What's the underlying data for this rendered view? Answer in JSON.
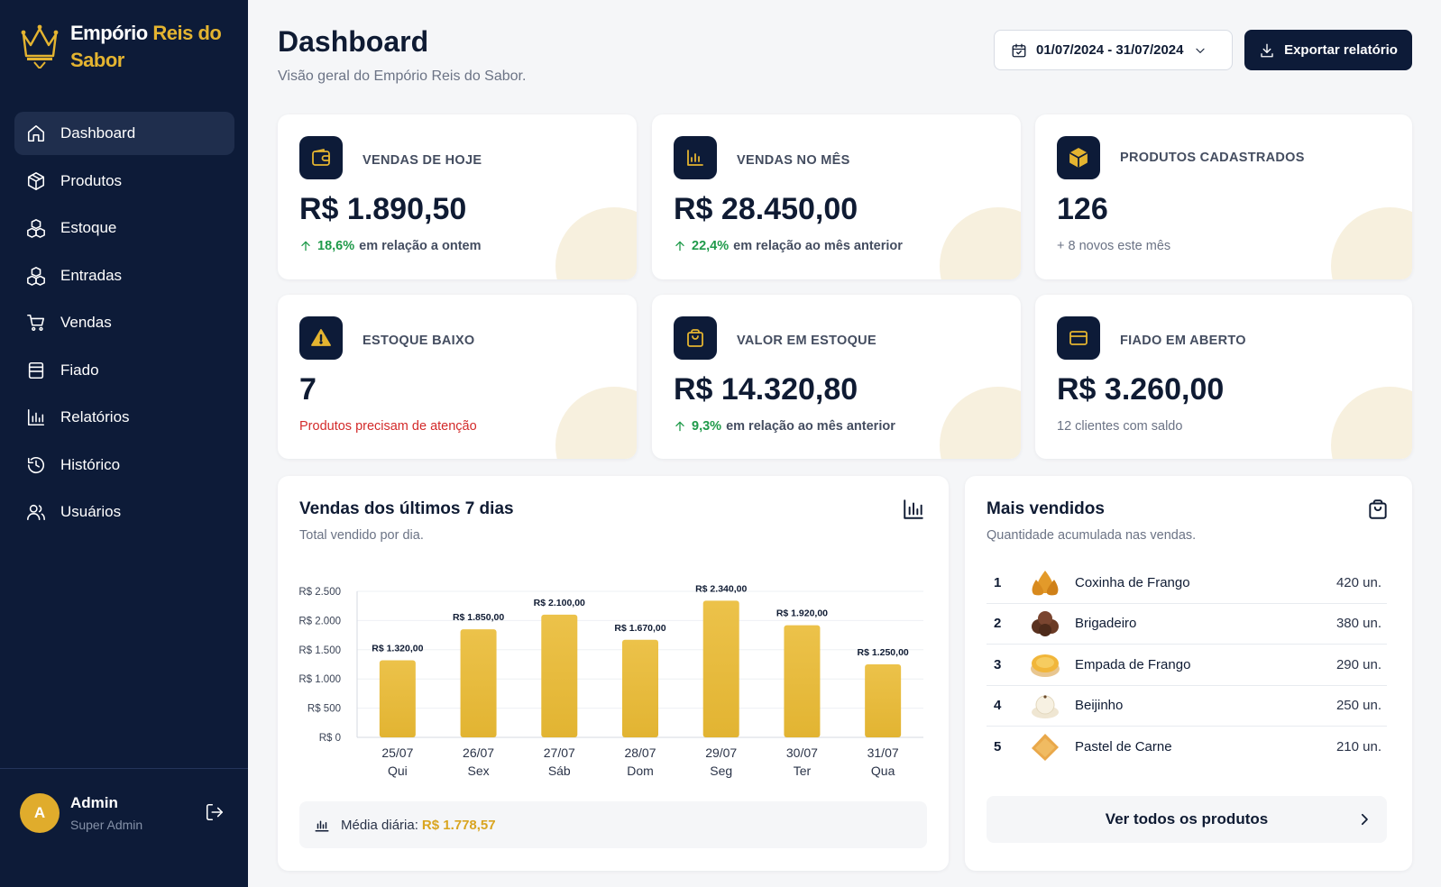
{
  "brand": {
    "name_part1": "Empório",
    "name_part2": "Reis do",
    "name_part3": "Sabor"
  },
  "nav": {
    "items": [
      {
        "label": "Dashboard",
        "icon": "home-icon",
        "active": true
      },
      {
        "label": "Produtos",
        "icon": "box-icon"
      },
      {
        "label": "Estoque",
        "icon": "boxes-icon"
      },
      {
        "label": "Entradas",
        "icon": "boxes-icon"
      },
      {
        "label": "Vendas",
        "icon": "cart-icon"
      },
      {
        "label": "Fiado",
        "icon": "ledger-icon"
      },
      {
        "label": "Relatórios",
        "icon": "bar-chart-icon"
      },
      {
        "label": "Histórico",
        "icon": "history-icon"
      },
      {
        "label": "Usuários",
        "icon": "users-icon"
      }
    ]
  },
  "user": {
    "initial": "A",
    "name": "Admin",
    "role": "Super Admin"
  },
  "header": {
    "title": "Dashboard",
    "subtitle": "Visão geral do Empório Reis do Sabor.",
    "date_range": "01/07/2024 - 31/07/2024",
    "export_label": "Exportar relatório"
  },
  "stats": [
    {
      "label": "VENDAS DE HOJE",
      "value": "R$ 1.890,50",
      "change": "18,6%",
      "note": "em relação a ontem",
      "icon": "wallet-icon"
    },
    {
      "label": "VENDAS NO MÊS",
      "value": "R$ 28.450,00",
      "change": "22,4%",
      "note": "em relação ao mês anterior",
      "icon": "chart-icon"
    },
    {
      "label": "PRODUTOS CADASTRADOS",
      "value": "126",
      "note": "+ 8 novos este mês",
      "icon": "package-icon"
    },
    {
      "label": "ESTOQUE BAIXO",
      "value": "7",
      "note": "Produtos precisam de atenção",
      "icon": "warning-icon"
    },
    {
      "label": "VALOR EM ESTOQUE",
      "value": "R$ 14.320,80",
      "change": "9,3%",
      "note": "em relação ao mês anterior",
      "icon": "bag-icon"
    },
    {
      "label": "FIADO EM ABERTO",
      "value": "R$ 3.260,00",
      "note": "12 clientes com saldo",
      "icon": "card-icon"
    }
  ],
  "sales_panel": {
    "title": "Vendas dos últimos 7 dias",
    "subtitle": "Total vendido por dia.",
    "avg_label": "Média diária:",
    "avg_value": "R$ 1.778,57"
  },
  "chart_data": {
    "type": "bar",
    "categories": [
      "25/07",
      "26/07",
      "27/07",
      "28/07",
      "29/07",
      "30/07",
      "31/07"
    ],
    "weekdays": [
      "Qui",
      "Sex",
      "Sáb",
      "Dom",
      "Seg",
      "Ter",
      "Qua"
    ],
    "values": [
      1320,
      1850,
      2100,
      1670,
      2340,
      1920,
      1250
    ],
    "value_labels": [
      "R$ 1.320,00",
      "R$ 1.850,00",
      "R$ 2.100,00",
      "R$ 1.670,00",
      "R$ 2.340,00",
      "R$ 1.920,00",
      "R$ 1.250,00"
    ],
    "y_ticks": [
      0,
      500,
      1000,
      1500,
      2000,
      2500
    ],
    "y_tick_labels": [
      "R$ 0",
      "R$ 500",
      "R$ 1.000",
      "R$ 1.500",
      "R$ 2.000",
      "R$ 2.500"
    ],
    "ylim": [
      0,
      2500
    ],
    "grid": true,
    "bar_color": "#e2b432"
  },
  "best_sellers": {
    "title": "Mais vendidos",
    "subtitle": "Quantidade acumulada nas vendas.",
    "items": [
      {
        "rank": "1",
        "name": "Coxinha de Frango",
        "qty": "420 un."
      },
      {
        "rank": "2",
        "name": "Brigadeiro",
        "qty": "380 un."
      },
      {
        "rank": "3",
        "name": "Empada de Frango",
        "qty": "290 un."
      },
      {
        "rank": "4",
        "name": "Beijinho",
        "qty": "250 un."
      },
      {
        "rank": "5",
        "name": "Pastel de Carne",
        "qty": "210 un."
      }
    ],
    "see_all_label": "Ver todos os produtos"
  },
  "colors": {
    "navy": "#0d1b38",
    "gold": "#e4b430",
    "green": "#1f9a4a",
    "red": "#d32a2a"
  }
}
